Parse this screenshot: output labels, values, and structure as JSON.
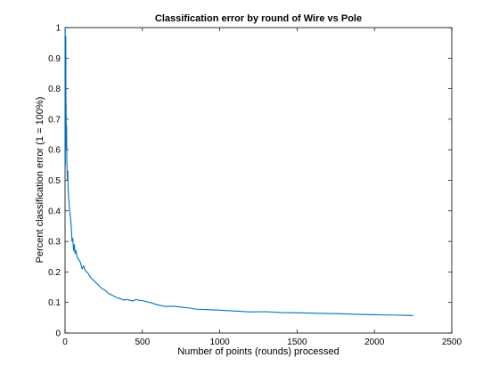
{
  "chart_data": {
    "type": "line",
    "title": "Classification error by round of Wire vs Pole",
    "xlabel": "Number of points (rounds) processed",
    "ylabel": "Percent classification error (1 = 100%)",
    "xlim": [
      0,
      2500
    ],
    "ylim": [
      0,
      1
    ],
    "xticks": [
      0,
      500,
      1000,
      1500,
      2000,
      2500
    ],
    "yticks": [
      0,
      0.1,
      0.2,
      0.3,
      0.4,
      0.5,
      0.6,
      0.7,
      0.8,
      0.9,
      1
    ],
    "xtick_labels": [
      "0",
      "500",
      "1000",
      "1500",
      "2000",
      "2500"
    ],
    "ytick_labels": [
      "0",
      "0.1",
      "0.2",
      "0.3",
      "0.4",
      "0.5",
      "0.6",
      "0.7",
      "0.8",
      "0.9",
      "1"
    ],
    "grid": false,
    "color": "#0072bd",
    "series": [
      {
        "x": [
          1,
          2,
          3,
          4,
          5,
          6,
          7,
          8,
          10,
          12,
          15,
          18,
          20,
          25,
          30,
          35,
          40,
          45,
          50,
          55,
          60,
          65,
          70,
          80,
          90,
          100,
          110,
          120,
          130,
          140,
          150,
          160,
          170,
          180,
          190,
          200,
          220,
          240,
          260,
          280,
          300,
          320,
          340,
          360,
          380,
          400,
          420,
          440,
          460,
          480,
          500,
          550,
          600,
          650,
          700,
          750,
          800,
          850,
          900,
          950,
          1000,
          1100,
          1200,
          1300,
          1400,
          1500,
          1600,
          1700,
          1800,
          1900,
          2000,
          2100,
          2200,
          2250
        ],
        "y": [
          1.0,
          0.55,
          0.85,
          0.65,
          0.97,
          0.62,
          0.75,
          0.6,
          0.68,
          0.56,
          0.5,
          0.53,
          0.47,
          0.43,
          0.4,
          0.38,
          0.35,
          0.3,
          0.31,
          0.27,
          0.29,
          0.26,
          0.27,
          0.245,
          0.24,
          0.23,
          0.21,
          0.22,
          0.205,
          0.2,
          0.195,
          0.185,
          0.18,
          0.175,
          0.17,
          0.165,
          0.155,
          0.145,
          0.14,
          0.13,
          0.125,
          0.12,
          0.115,
          0.112,
          0.108,
          0.11,
          0.107,
          0.105,
          0.11,
          0.107,
          0.106,
          0.1,
          0.092,
          0.087,
          0.088,
          0.085,
          0.082,
          0.078,
          0.077,
          0.076,
          0.075,
          0.072,
          0.069,
          0.07,
          0.067,
          0.066,
          0.065,
          0.064,
          0.063,
          0.061,
          0.06,
          0.059,
          0.058,
          0.057
        ]
      }
    ]
  }
}
